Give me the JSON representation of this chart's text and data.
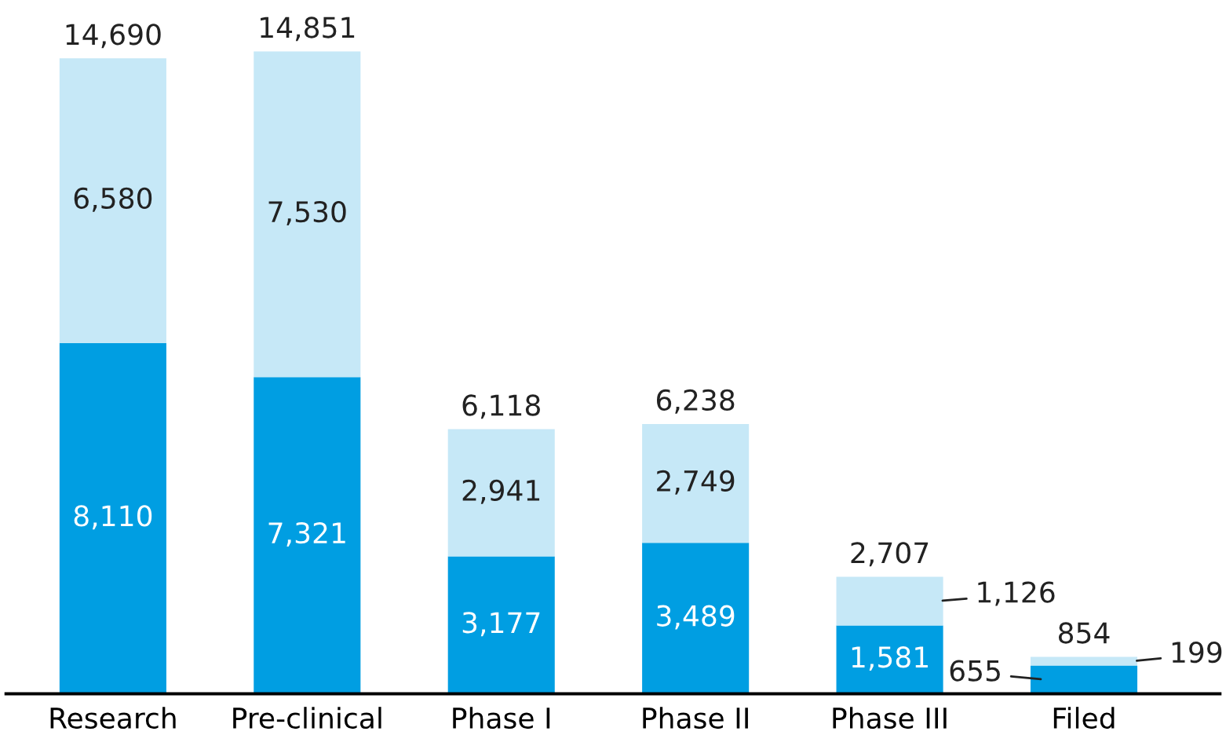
{
  "chart_data": {
    "type": "bar",
    "stacked": true,
    "categories": [
      "Research",
      "Pre-clinical",
      "Phase I",
      "Phase II",
      "Phase III",
      "Filed"
    ],
    "series": [
      {
        "color": "#009ee2",
        "values": [
          8110,
          7321,
          3177,
          3489,
          1581,
          655
        ],
        "value_labels": [
          "8,110",
          "7,321",
          "3,177",
          "3,489",
          "1,581",
          "655"
        ]
      },
      {
        "color": "#c6e8f7",
        "values": [
          6580,
          7530,
          2941,
          2749,
          1126,
          199
        ],
        "value_labels": [
          "6,580",
          "7,530",
          "2,941",
          "2,749",
          "1,126",
          "199"
        ]
      }
    ],
    "totals": [
      "14,690",
      "14,851",
      "6,118",
      "6,238",
      "2,707",
      "854"
    ],
    "grid": false,
    "legend": false
  }
}
